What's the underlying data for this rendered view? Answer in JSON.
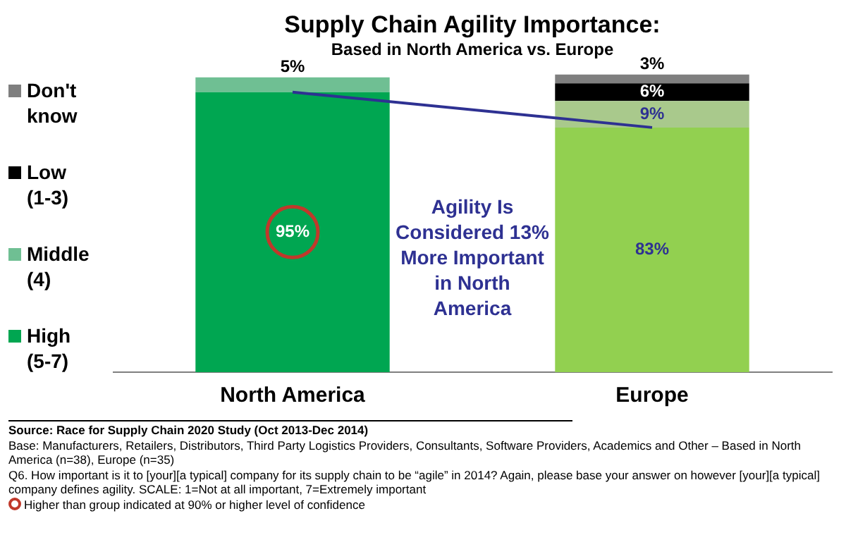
{
  "chart_data": {
    "type": "bar",
    "title": "Supply Chain Agility Importance:",
    "subtitle": "Based in North America vs. Europe",
    "categories": [
      "North America",
      "Europe"
    ],
    "stacked": true,
    "legend": "left",
    "tick_labels": "x",
    "grid": false,
    "series": [
      {
        "name": "High (5-7)",
        "color": "#00a651",
        "colors": [
          "#00a651",
          "#92d050"
        ],
        "values": [
          95,
          83
        ],
        "value_labels": [
          "95%",
          "83%"
        ]
      },
      {
        "name": "Middle (4)",
        "color": "#6fbf93",
        "colors": [
          "#6fbf93",
          "#a9c98c"
        ],
        "values": [
          5,
          9
        ],
        "value_labels": [
          "5%",
          "9%"
        ]
      },
      {
        "name": "Low (1-3)",
        "color": "#000000",
        "values": [
          null,
          6
        ],
        "value_labels": [
          null,
          "6%"
        ]
      },
      {
        "name": "Don't know",
        "color": "#7f7f7f",
        "values": [
          null,
          3
        ],
        "value_labels": [
          null,
          "3%"
        ]
      },
      {
        "type": "line",
        "color": "#2e3192",
        "values": [
          95,
          83
        ]
      }
    ],
    "annotations": [
      "Agility Is Considered 13% More Important in North America",
      "Source:  Race for Supply Chain 2020 Study (Oct 2013-Dec 2014)",
      "Base:  Manufacturers, Retailers, Distributors, Third Party Logistics Providers, Consultants, Software Providers, Academics and Other – Based in North America (n=38), Europe (n=35)",
      "Q6. How important is it to [your][a typical] company for its supply chain to be “agile” in 2014?  Again, please base your answer on however [your][a typical] company defines agility.  SCALE: 1=Not at all important, 7=Extremely important",
      "Higher than group indicated at 90% or higher level of confidence"
    ]
  }
}
